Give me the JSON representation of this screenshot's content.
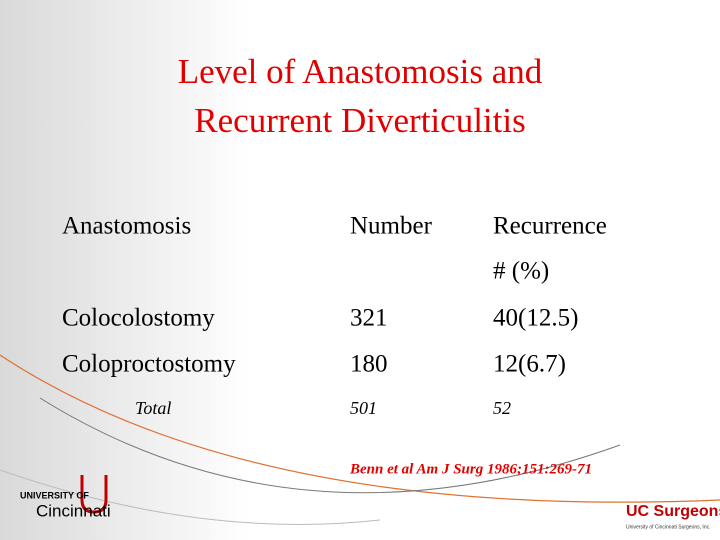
{
  "title": [
    "Level of Anastomosis and",
    "Recurrent Diverticulitis"
  ],
  "table": {
    "header": [
      "Anastomosis",
      "Number",
      [
        "Recurrence",
        "# (%)"
      ]
    ],
    "rows": [
      [
        "Colocolostomy",
        "321",
        "40(12.5)"
      ],
      [
        "Coloproctostomy",
        "180",
        "12(6.7)"
      ]
    ],
    "total": [
      "Total",
      "501",
      "52"
    ]
  },
  "citation": "Benn et al Am J Surg 1986;151:269-71",
  "logos": {
    "left": [
      "UNIVERSITY OF",
      "Cincinnati"
    ],
    "right": [
      "UC Surgeons",
      "University of Cincinnati Surgeons, Inc."
    ]
  }
}
